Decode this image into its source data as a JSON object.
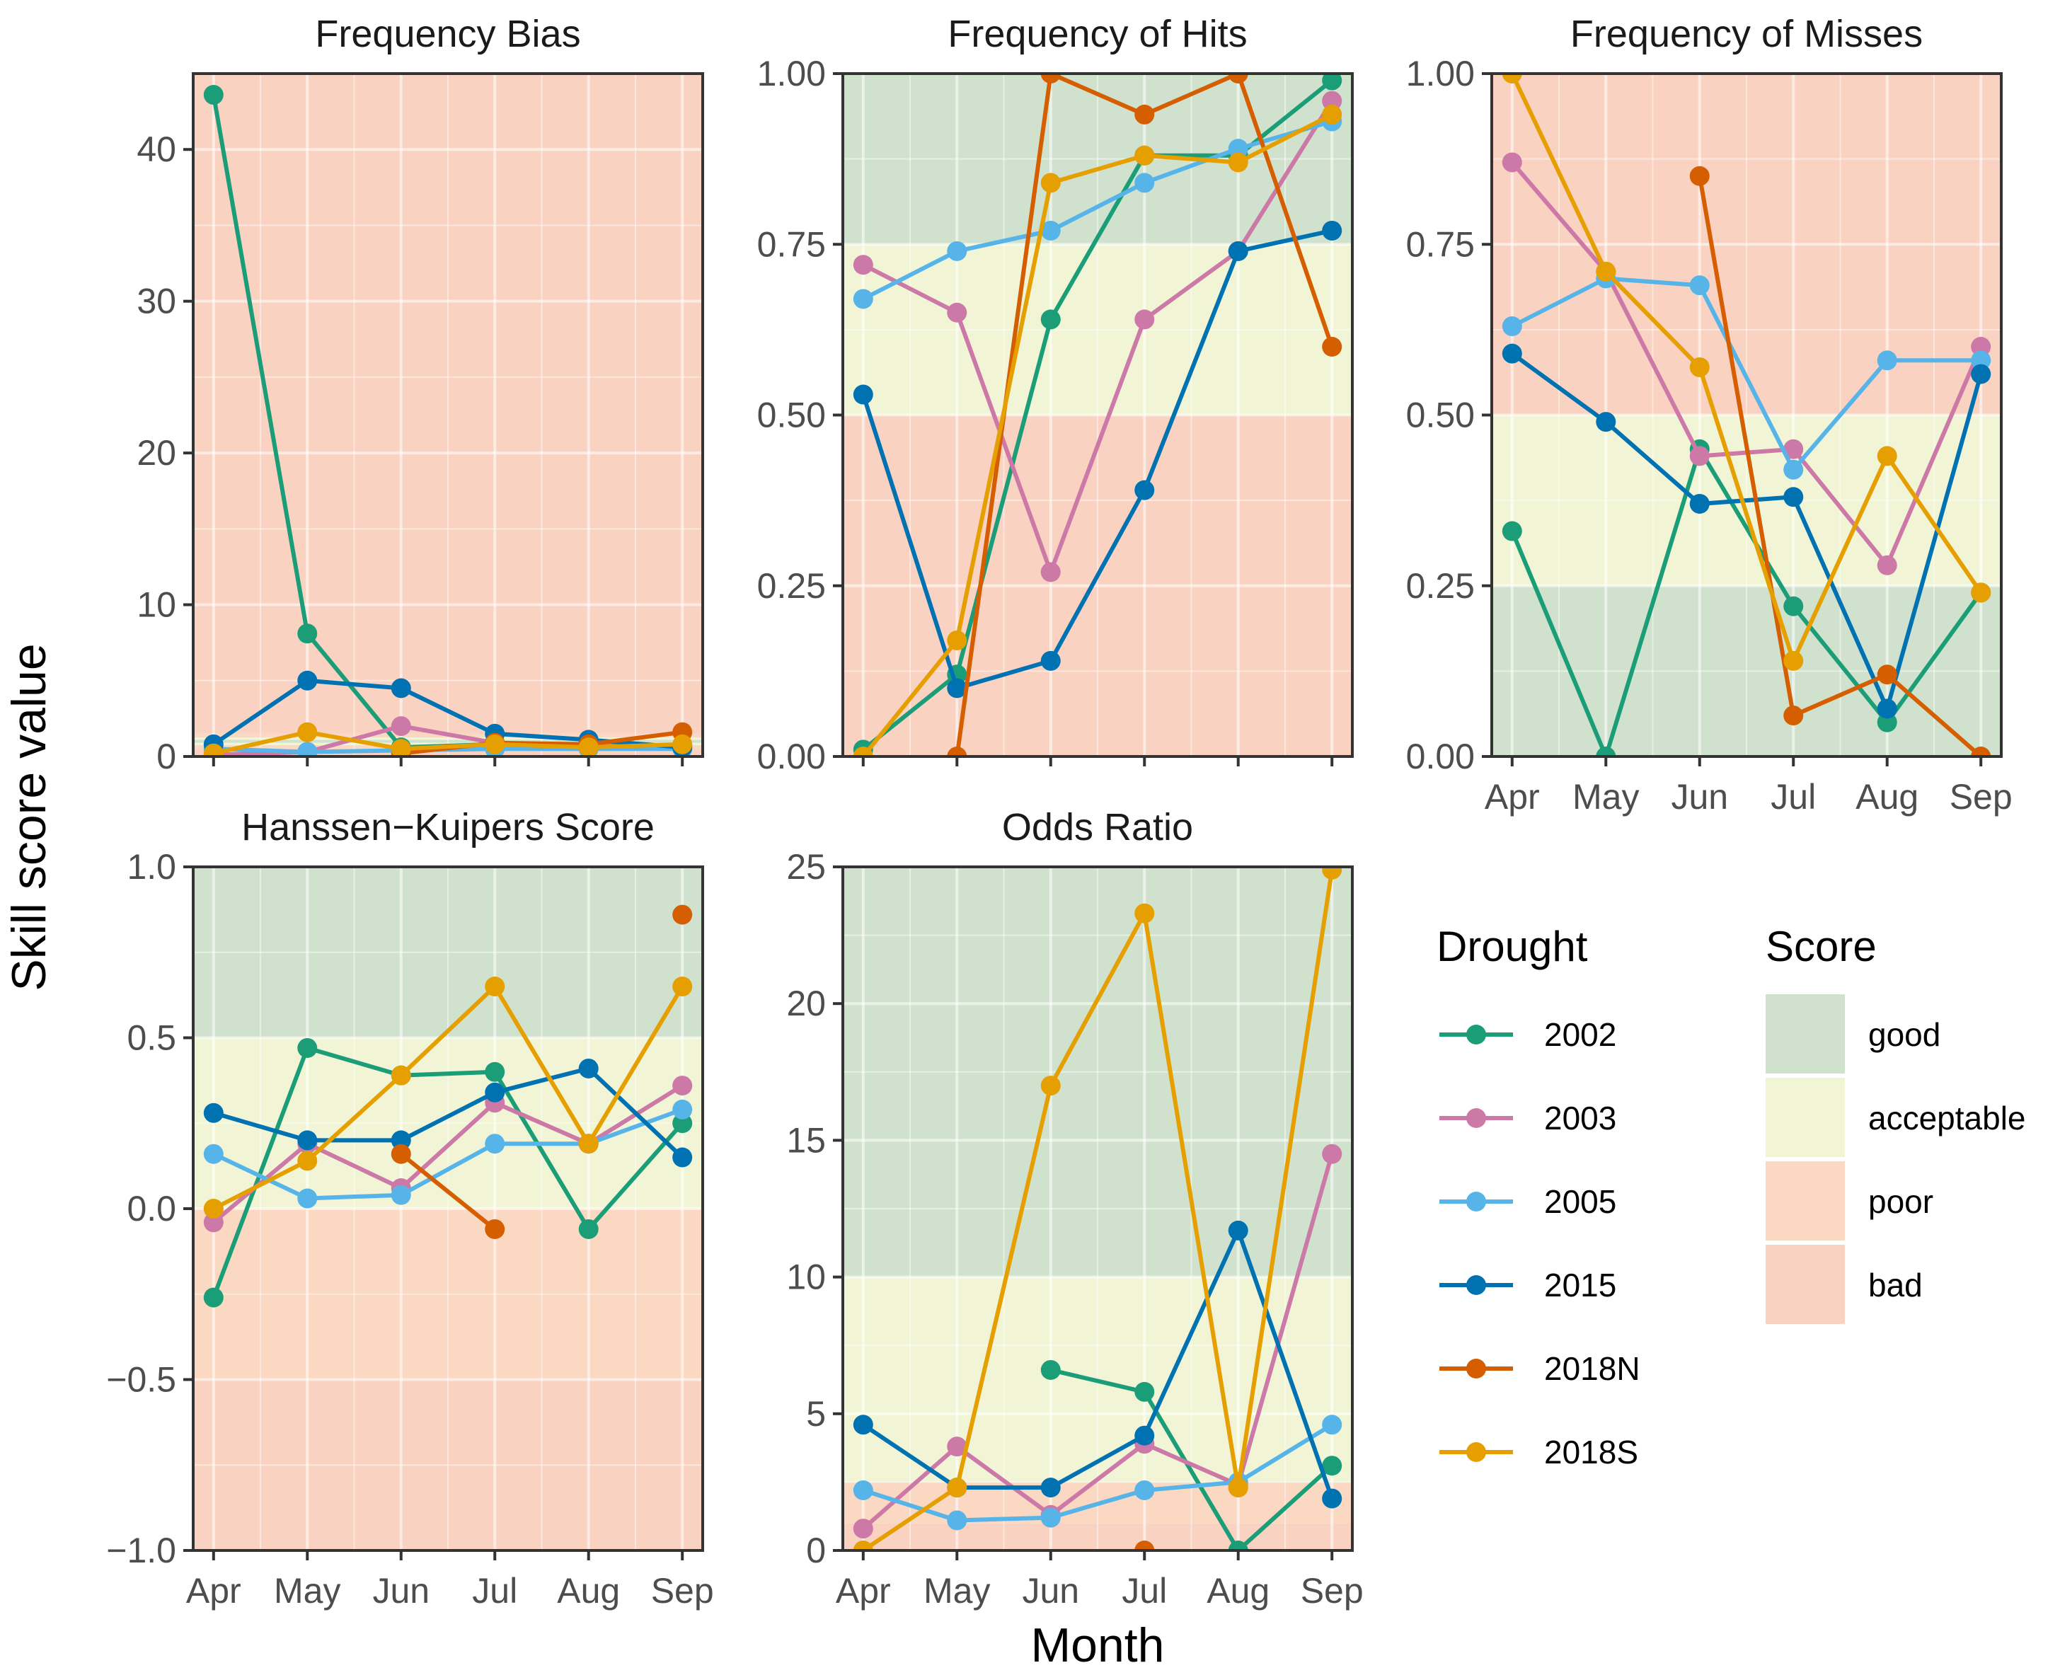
{
  "ylabel": "Skill score value",
  "xlabel": "Month",
  "legend": {
    "drought_title": "Drought",
    "score_title": "Score",
    "drought_items": [
      {
        "name": "2002",
        "color": "#1b9e77"
      },
      {
        "name": "2003",
        "color": "#cc79a7"
      },
      {
        "name": "2005",
        "color": "#56b4e9"
      },
      {
        "name": "2015",
        "color": "#0072b2"
      },
      {
        "name": "2018N",
        "color": "#d55e00"
      },
      {
        "name": "2018S",
        "color": "#e69f00"
      }
    ],
    "score_items": [
      {
        "name": "good",
        "color": "#d0e2cd"
      },
      {
        "name": "acceptable",
        "color": "#f1f5d6"
      },
      {
        "name": "poor",
        "color": "#fad8c2"
      },
      {
        "name": "bad",
        "color": "#f9d2c1"
      }
    ]
  },
  "chart_data": [
    {
      "type": "line",
      "title": "Frequency Bias",
      "categories": [
        "Apr",
        "May",
        "Jun",
        "Jul",
        "Aug",
        "Sep"
      ],
      "show_x_ticks": false,
      "ylim": [
        0,
        45
      ],
      "yticks": [
        0,
        10,
        20,
        30,
        40
      ],
      "yticklabels": [
        "0",
        "10",
        "20",
        "30",
        "40"
      ],
      "bands": [
        {
          "from": 0,
          "to": 0.5,
          "score": "bad"
        },
        {
          "from": 0.5,
          "to": 0.75,
          "score": "poor"
        },
        {
          "from": 0.75,
          "to": 0.9,
          "score": "acceptable"
        },
        {
          "from": 0.9,
          "to": 1.1,
          "score": "good"
        },
        {
          "from": 1.1,
          "to": 1.25,
          "score": "acceptable"
        },
        {
          "from": 1.25,
          "to": 1.5,
          "score": "poor"
        },
        {
          "from": 1.5,
          "to": 45,
          "score": "bad"
        }
      ],
      "series": [
        {
          "name": "2002",
          "values": [
            43.6,
            8.1,
            0.6,
            0.8,
            0.7,
            0.7
          ]
        },
        {
          "name": "2003",
          "values": [
            0.1,
            0.3,
            2.0,
            0.9,
            0.7,
            0.7
          ]
        },
        {
          "name": "2005",
          "values": [
            0.5,
            0.3,
            0.4,
            0.5,
            0.5,
            0.5
          ]
        },
        {
          "name": "2015",
          "values": [
            0.8,
            5.0,
            4.5,
            1.5,
            1.1,
            0.6
          ]
        },
        {
          "name": "2018N",
          "values": [
            null,
            null,
            0.2,
            0.9,
            0.8,
            1.6
          ]
        },
        {
          "name": "2018S",
          "values": [
            0.2,
            1.6,
            0.5,
            0.8,
            0.6,
            0.8
          ]
        }
      ]
    },
    {
      "type": "line",
      "title": "Frequency of Hits",
      "categories": [
        "Apr",
        "May",
        "Jun",
        "Jul",
        "Aug",
        "Sep"
      ],
      "show_x_ticks": false,
      "ylim": [
        0,
        1
      ],
      "yticks": [
        0,
        0.25,
        0.5,
        0.75,
        1
      ],
      "yticklabels": [
        "0.00",
        "0.25",
        "0.50",
        "0.75",
        "1.00"
      ],
      "bands": [
        {
          "from": 0,
          "to": 0.5,
          "score": "bad"
        },
        {
          "from": 0.5,
          "to": 0.75,
          "score": "acceptable"
        },
        {
          "from": 0.75,
          "to": 1,
          "score": "good"
        }
      ],
      "series": [
        {
          "name": "2002",
          "values": [
            0.01,
            0.12,
            0.64,
            0.88,
            0.88,
            0.99
          ]
        },
        {
          "name": "2003",
          "values": [
            0.72,
            0.65,
            0.27,
            0.64,
            0.74,
            0.96
          ]
        },
        {
          "name": "2005",
          "values": [
            0.67,
            0.74,
            0.77,
            0.84,
            0.89,
            0.93
          ]
        },
        {
          "name": "2015",
          "values": [
            0.53,
            0.1,
            0.14,
            0.39,
            0.74,
            0.77
          ]
        },
        {
          "name": "2018N",
          "values": [
            null,
            0.0,
            1.0,
            0.94,
            1.0,
            0.6
          ]
        },
        {
          "name": "2018S",
          "values": [
            0.0,
            0.17,
            0.84,
            0.88,
            0.87,
            0.94
          ]
        }
      ]
    },
    {
      "type": "line",
      "title": "Frequency of Misses",
      "categories": [
        "Apr",
        "May",
        "Jun",
        "Jul",
        "Aug",
        "Sep"
      ],
      "show_x_ticks": true,
      "ylim": [
        0,
        1
      ],
      "yticks": [
        0,
        0.25,
        0.5,
        0.75,
        1
      ],
      "yticklabels": [
        "0.00",
        "0.25",
        "0.50",
        "0.75",
        "1.00"
      ],
      "bands": [
        {
          "from": 0,
          "to": 0.25,
          "score": "good"
        },
        {
          "from": 0.25,
          "to": 0.5,
          "score": "acceptable"
        },
        {
          "from": 0.5,
          "to": 1,
          "score": "bad"
        }
      ],
      "series": [
        {
          "name": "2002",
          "values": [
            0.33,
            0.0,
            0.45,
            0.22,
            0.05,
            0.24
          ]
        },
        {
          "name": "2003",
          "values": [
            0.87,
            0.71,
            0.44,
            0.45,
            0.28,
            0.6
          ]
        },
        {
          "name": "2005",
          "values": [
            0.63,
            0.7,
            0.69,
            0.42,
            0.58,
            0.58
          ]
        },
        {
          "name": "2015",
          "values": [
            0.59,
            0.49,
            0.37,
            0.38,
            0.07,
            0.56
          ]
        },
        {
          "name": "2018N",
          "values": [
            null,
            null,
            0.85,
            0.06,
            0.12,
            0.0
          ]
        },
        {
          "name": "2018S",
          "values": [
            1.0,
            0.71,
            0.57,
            0.14,
            0.44,
            0.24
          ]
        }
      ]
    },
    {
      "type": "line",
      "title": "Hanssen−Kuipers Score",
      "categories": [
        "Apr",
        "May",
        "Jun",
        "Jul",
        "Aug",
        "Sep"
      ],
      "show_x_ticks": true,
      "ylim": [
        -1,
        1
      ],
      "yticks": [
        -1,
        -0.5,
        0,
        0.5,
        1
      ],
      "yticklabels": [
        "−1.0",
        "−0.5",
        "0.0",
        "0.5",
        "1.0"
      ],
      "bands": [
        {
          "from": -1,
          "to": -0.5,
          "score": "bad"
        },
        {
          "from": -0.5,
          "to": 0,
          "score": "poor"
        },
        {
          "from": 0,
          "to": 0.5,
          "score": "acceptable"
        },
        {
          "from": 0.5,
          "to": 1,
          "score": "good"
        }
      ],
      "series": [
        {
          "name": "2002",
          "values": [
            -0.26,
            0.47,
            0.39,
            0.4,
            -0.06,
            0.25
          ]
        },
        {
          "name": "2003",
          "values": [
            -0.04,
            0.19,
            0.06,
            0.31,
            0.19,
            0.36
          ]
        },
        {
          "name": "2005",
          "values": [
            0.16,
            0.03,
            0.04,
            0.19,
            0.19,
            0.29
          ]
        },
        {
          "name": "2015",
          "values": [
            0.28,
            0.2,
            0.2,
            0.34,
            0.41,
            0.15
          ]
        },
        {
          "name": "2018N",
          "values": [
            null,
            null,
            0.16,
            -0.06,
            null,
            0.86
          ]
        },
        {
          "name": "2018S",
          "values": [
            0.0,
            0.14,
            0.39,
            0.65,
            0.19,
            0.65
          ]
        }
      ]
    },
    {
      "type": "line",
      "title": "Odds Ratio",
      "categories": [
        "Apr",
        "May",
        "Jun",
        "Jul",
        "Aug",
        "Sep"
      ],
      "show_x_ticks": true,
      "ylim": [
        0,
        25
      ],
      "yticks": [
        0,
        5,
        10,
        15,
        20,
        25
      ],
      "yticklabels": [
        "0",
        "5",
        "10",
        "15",
        "20",
        "25"
      ],
      "bands": [
        {
          "from": 0,
          "to": 1,
          "score": "bad"
        },
        {
          "from": 1,
          "to": 2.5,
          "score": "poor"
        },
        {
          "from": 2.5,
          "to": 10,
          "score": "acceptable"
        },
        {
          "from": 10,
          "to": 25,
          "score": "good"
        }
      ],
      "series": [
        {
          "name": "2002",
          "values": [
            null,
            null,
            6.6,
            5.8,
            0.0,
            3.1
          ]
        },
        {
          "name": "2003",
          "values": [
            0.8,
            3.8,
            1.3,
            3.9,
            2.4,
            14.5
          ]
        },
        {
          "name": "2005",
          "values": [
            2.2,
            1.1,
            1.2,
            2.2,
            2.5,
            4.6
          ]
        },
        {
          "name": "2015",
          "values": [
            4.6,
            2.3,
            2.3,
            4.2,
            11.7,
            1.9
          ]
        },
        {
          "name": "2018N",
          "values": [
            null,
            null,
            null,
            0.0,
            null,
            null
          ]
        },
        {
          "name": "2018S",
          "values": [
            0.0,
            2.3,
            17.0,
            23.3,
            2.3,
            24.9
          ]
        }
      ]
    }
  ]
}
